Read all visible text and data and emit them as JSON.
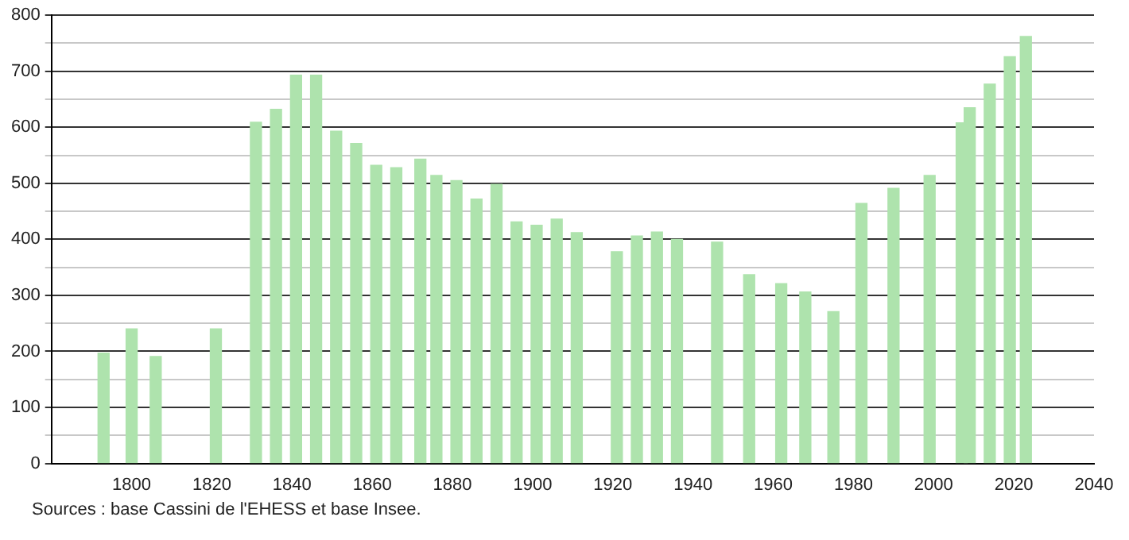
{
  "chart_data": {
    "type": "bar",
    "x": [
      1793,
      1800,
      1806,
      1821,
      1831,
      1836,
      1841,
      1846,
      1851,
      1856,
      1861,
      1866,
      1872,
      1876,
      1881,
      1886,
      1891,
      1896,
      1901,
      1906,
      1911,
      1921,
      1926,
      1931,
      1936,
      1946,
      1954,
      1962,
      1968,
      1975,
      1982,
      1990,
      1999,
      2007,
      2009,
      2014,
      2019,
      2023
    ],
    "values": [
      197,
      240,
      191,
      240,
      609,
      632,
      693,
      693,
      593,
      571,
      532,
      528,
      543,
      514,
      505,
      472,
      498,
      431,
      425,
      436,
      412,
      378,
      406,
      413,
      400,
      395,
      337,
      321,
      306,
      271,
      464,
      491,
      514,
      608,
      635,
      677,
      726,
      762
    ],
    "color": "#aee3ad",
    "xlim": [
      1780,
      2040
    ],
    "xticks": [
      1800,
      1820,
      1840,
      1860,
      1880,
      1900,
      1920,
      1940,
      1960,
      1980,
      2000,
      2020,
      2040
    ],
    "ylim": [
      0,
      800
    ],
    "yticks": [
      0,
      {
        "value": 50,
        "label": null
      },
      100,
      {
        "value": 150,
        "label": null
      },
      200,
      {
        "value": 250,
        "label": null
      },
      300,
      {
        "value": 350,
        "label": null
      },
      400,
      {
        "value": 450,
        "label": null
      },
      500,
      {
        "value": 550,
        "label": null
      },
      600,
      {
        "value": 650,
        "label": null
      },
      700,
      {
        "value": 750,
        "label": null
      },
      800
    ],
    "grid": "y",
    "annotations": [
      "Sources : base Cassini de l'EHESS et base Insee."
    ]
  }
}
